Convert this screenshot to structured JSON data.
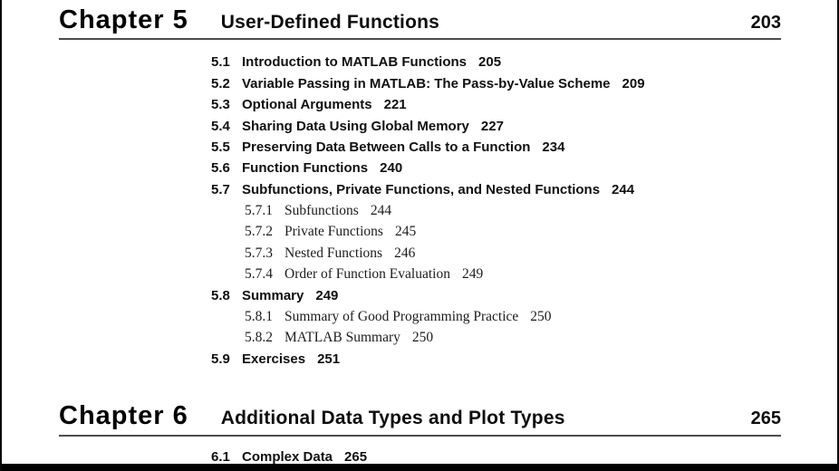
{
  "colors": {
    "text": "#101010",
    "rule": "#4c4c4c",
    "page_edge": "#000000"
  },
  "chapters": [
    {
      "label": "Chapter 5",
      "title": "User-Defined Functions",
      "page": "203",
      "entries": [
        {
          "num": "5.1",
          "title": "Introduction to MATLAB Functions",
          "page": "205",
          "level": 1
        },
        {
          "num": "5.2",
          "title": "Variable Passing in MATLAB: The Pass-by-Value Scheme",
          "page": "209",
          "level": 1
        },
        {
          "num": "5.3",
          "title": "Optional Arguments",
          "page": "221",
          "level": 1
        },
        {
          "num": "5.4",
          "title": "Sharing Data Using Global Memory",
          "page": "227",
          "level": 1
        },
        {
          "num": "5.5",
          "title": "Preserving Data Between Calls to a Function",
          "page": "234",
          "level": 1
        },
        {
          "num": "5.6",
          "title": "Function Functions",
          "page": "240",
          "level": 1
        },
        {
          "num": "5.7",
          "title": "Subfunctions, Private Functions, and Nested Functions",
          "page": "244",
          "level": 1
        },
        {
          "num": "5.7.1",
          "title": "Subfunctions",
          "page": "244",
          "level": 2
        },
        {
          "num": "5.7.2",
          "title": "Private Functions",
          "page": "245",
          "level": 2
        },
        {
          "num": "5.7.3",
          "title": "Nested Functions",
          "page": "246",
          "level": 2
        },
        {
          "num": "5.7.4",
          "title": "Order of Function Evaluation",
          "page": "249",
          "level": 2
        },
        {
          "num": "5.8",
          "title": "Summary",
          "page": "249",
          "level": 1
        },
        {
          "num": "5.8.1",
          "title": "Summary of Good Programming Practice",
          "page": "250",
          "level": 2
        },
        {
          "num": "5.8.2",
          "title": "MATLAB Summary",
          "page": "250",
          "level": 2
        },
        {
          "num": "5.9",
          "title": "Exercises",
          "page": "251",
          "level": 1
        }
      ]
    },
    {
      "label": "Chapter 6",
      "title": "Additional Data Types and Plot Types",
      "page": "265",
      "entries": [
        {
          "num": "6.1",
          "title": "Complex Data",
          "page": "265",
          "level": 1
        }
      ]
    }
  ]
}
